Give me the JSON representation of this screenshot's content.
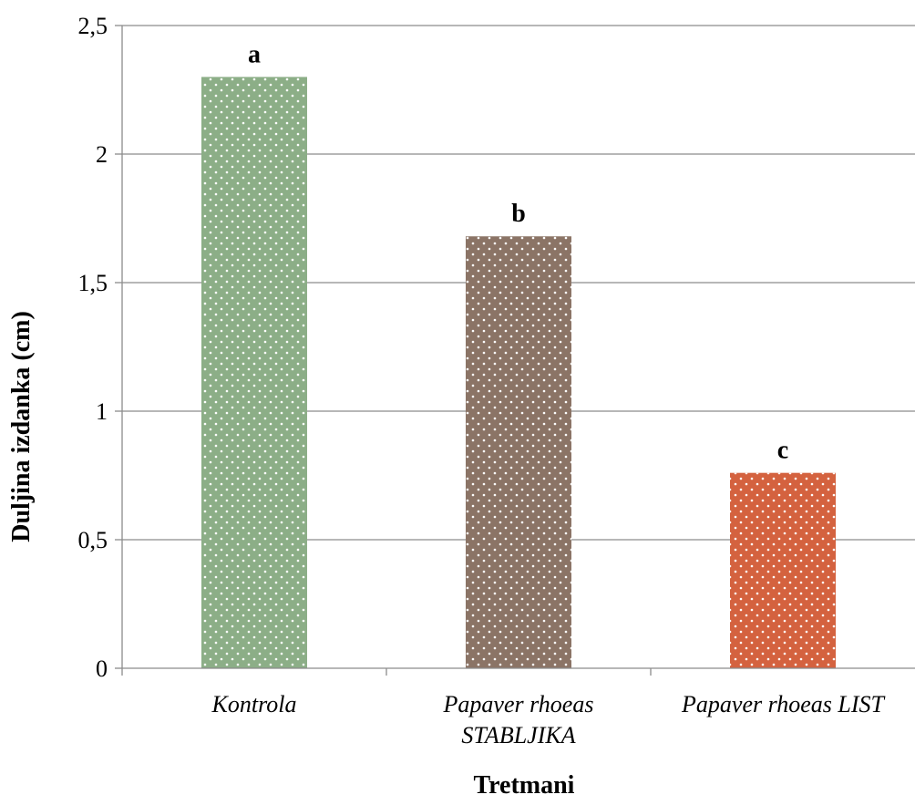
{
  "chart_data": {
    "type": "bar",
    "categories": [
      "Kontrola",
      "Papaver rhoeas STABLJIKA",
      "Papaver rhoeas LIST"
    ],
    "category_lines": [
      [
        "Kontrola"
      ],
      [
        "Papaver rhoeas",
        "STABLJIKA"
      ],
      [
        "Papaver rhoeas LIST"
      ]
    ],
    "values": [
      2.3,
      1.68,
      0.76
    ],
    "data_labels": [
      "a",
      "b",
      "c"
    ],
    "colors": [
      "#8cae87",
      "#8b7466",
      "#d4623f"
    ],
    "xlabel": "Tretmani",
    "ylabel": "Duljina izdanka (cm)",
    "ylim": [
      0,
      2.5
    ],
    "yticks": [
      0,
      0.5,
      1,
      1.5,
      2,
      2.5
    ],
    "ytick_labels": [
      "0",
      "0,5",
      "1",
      "1,5",
      "2",
      "2,5"
    ],
    "grid": true,
    "legend": "none"
  }
}
